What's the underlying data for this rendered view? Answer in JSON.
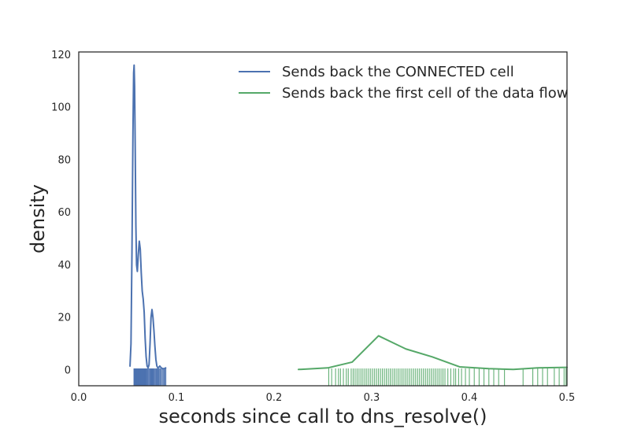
{
  "chart_data": {
    "type": "line",
    "title": "",
    "xlabel": "seconds since call to dns_resolve()",
    "ylabel": "density",
    "xlim": [
      0.0,
      0.5
    ],
    "ylim": [
      -6,
      121
    ],
    "xticks": [
      0.0,
      0.1,
      0.2,
      0.3,
      0.4,
      0.5
    ],
    "xtick_labels": [
      "0.0",
      "0.1",
      "0.2",
      "0.3",
      "0.4",
      "0.5"
    ],
    "yticks": [
      0,
      20,
      40,
      60,
      80,
      100,
      120
    ],
    "ytick_labels": [
      "0",
      "20",
      "40",
      "60",
      "80",
      "100",
      "120"
    ],
    "grid": false,
    "legend_position": "top-right",
    "series": [
      {
        "name": "Sends back the CONNECTED cell",
        "color": "#4c72b0",
        "x": [
          0.0525,
          0.0535,
          0.0545,
          0.0555,
          0.0562,
          0.0567,
          0.0572,
          0.0578,
          0.0585,
          0.0592,
          0.06,
          0.061,
          0.062,
          0.063,
          0.064,
          0.065,
          0.066,
          0.067,
          0.068,
          0.069,
          0.07,
          0.071,
          0.072,
          0.073,
          0.074,
          0.075,
          0.076,
          0.077,
          0.078,
          0.079,
          0.08,
          0.081,
          0.082,
          0.083,
          0.084,
          0.085,
          0.086,
          0.087,
          0.088,
          0.089
        ],
        "y": [
          1.5,
          10,
          45,
          90,
          113,
          116,
          108,
          85,
          55,
          40,
          37.5,
          44,
          49,
          46,
          37,
          30,
          27,
          22,
          12,
          5,
          1.5,
          0.8,
          2,
          10,
          20,
          23,
          20,
          15,
          9,
          4,
          1.5,
          0.8,
          1,
          1.5,
          1,
          0.7,
          0.5,
          0.5,
          0.6,
          0.8
        ]
      },
      {
        "name": "Sends back the first cell of the data flow",
        "color": "#55a868",
        "x": [
          0.225,
          0.255,
          0.28,
          0.307,
          0.335,
          0.362,
          0.39,
          0.42,
          0.445,
          0.47,
          0.5
        ],
        "y": [
          0.2,
          0.8,
          3,
          13,
          8,
          5,
          1.2,
          0.5,
          0.2,
          0.8,
          1
        ]
      }
    ],
    "rug": [
      {
        "series": "Sends back the CONNECTED cell",
        "color": "#4c72b0",
        "values": [
          0.0565,
          0.0569,
          0.0572,
          0.0575,
          0.0578,
          0.0581,
          0.0584,
          0.0587,
          0.059,
          0.0593,
          0.0596,
          0.06,
          0.0604,
          0.0608,
          0.0612,
          0.0616,
          0.062,
          0.0624,
          0.0628,
          0.0632,
          0.0636,
          0.064,
          0.0645,
          0.065,
          0.0655,
          0.066,
          0.0665,
          0.067,
          0.0675,
          0.068,
          0.0685,
          0.069,
          0.0698,
          0.0705,
          0.0712,
          0.072,
          0.0728,
          0.0735,
          0.0742,
          0.075,
          0.0758,
          0.0765,
          0.0772,
          0.078,
          0.0788,
          0.0795,
          0.0802,
          0.081,
          0.0818,
          0.0825,
          0.0835,
          0.0845,
          0.0855,
          0.0865,
          0.0875,
          0.0885,
          0.0892
        ]
      },
      {
        "series": "Sends back the first cell of the data flow",
        "color": "#55a868",
        "values": [
          0.256,
          0.259,
          0.263,
          0.266,
          0.268,
          0.271,
          0.274,
          0.276,
          0.279,
          0.281,
          0.283,
          0.285,
          0.287,
          0.289,
          0.291,
          0.293,
          0.295,
          0.297,
          0.299,
          0.301,
          0.303,
          0.305,
          0.307,
          0.309,
          0.311,
          0.313,
          0.315,
          0.317,
          0.319,
          0.321,
          0.323,
          0.325,
          0.327,
          0.329,
          0.331,
          0.333,
          0.335,
          0.337,
          0.339,
          0.341,
          0.343,
          0.345,
          0.347,
          0.349,
          0.351,
          0.353,
          0.355,
          0.357,
          0.359,
          0.361,
          0.363,
          0.365,
          0.367,
          0.369,
          0.371,
          0.373,
          0.375,
          0.378,
          0.381,
          0.384,
          0.386,
          0.389,
          0.392,
          0.396,
          0.4,
          0.405,
          0.41,
          0.415,
          0.42,
          0.425,
          0.43,
          0.436,
          0.455,
          0.465,
          0.47,
          0.475,
          0.48,
          0.487,
          0.492,
          0.497,
          0.499
        ]
      }
    ]
  }
}
